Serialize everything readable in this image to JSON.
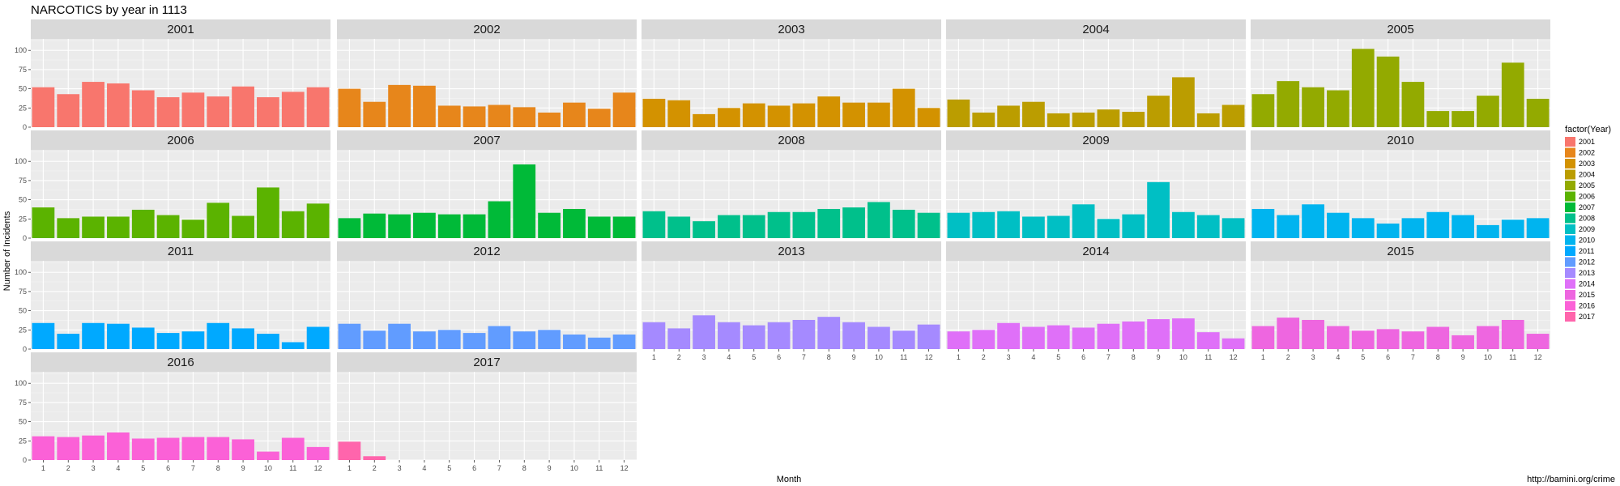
{
  "chart_data": {
    "type": "bar",
    "title": "NARCOTICS by year in 1113",
    "xlabel": "Month",
    "ylabel": "Number of Incidents",
    "caption": "http://bamini.org/crime",
    "legend_title": "factor(Year)",
    "legend_position": "right",
    "facet": "Year",
    "grid": true,
    "ylim": [
      0,
      115
    ],
    "y_ticks": [
      "0",
      "25",
      "50",
      "75",
      "100"
    ],
    "categories": [
      "1",
      "2",
      "3",
      "4",
      "5",
      "6",
      "7",
      "8",
      "9",
      "10",
      "11",
      "12"
    ],
    "series": [
      {
        "name": "2001",
        "color": "#F8766D",
        "values": [
          52,
          43,
          59,
          57,
          48,
          39,
          45,
          40,
          53,
          39,
          46,
          52
        ]
      },
      {
        "name": "2002",
        "color": "#E7861B",
        "values": [
          50,
          33,
          55,
          54,
          28,
          27,
          29,
          26,
          19,
          32,
          24,
          45
        ]
      },
      {
        "name": "2003",
        "color": "#D39200",
        "values": [
          37,
          35,
          17,
          25,
          31,
          28,
          31,
          40,
          32,
          32,
          50,
          25
        ]
      },
      {
        "name": "2004",
        "color": "#BB9D00",
        "values": [
          36,
          19,
          28,
          33,
          18,
          19,
          23,
          20,
          41,
          65,
          18,
          29
        ]
      },
      {
        "name": "2005",
        "color": "#93AA00",
        "values": [
          43,
          60,
          52,
          48,
          102,
          92,
          59,
          21,
          21,
          41,
          84,
          37
        ]
      },
      {
        "name": "2006",
        "color": "#5BB300",
        "values": [
          40,
          26,
          28,
          28,
          37,
          30,
          24,
          46,
          29,
          66,
          35,
          45
        ]
      },
      {
        "name": "2007",
        "color": "#00BA38",
        "values": [
          26,
          32,
          31,
          33,
          31,
          31,
          48,
          96,
          33,
          38,
          28,
          28
        ]
      },
      {
        "name": "2008",
        "color": "#00C08B",
        "values": [
          35,
          28,
          22,
          30,
          30,
          34,
          34,
          38,
          40,
          47,
          37,
          33
        ]
      },
      {
        "name": "2009",
        "color": "#00BFC4",
        "values": [
          33,
          34,
          35,
          28,
          29,
          44,
          25,
          31,
          73,
          34,
          30,
          26
        ]
      },
      {
        "name": "2010",
        "color": "#00B4EF",
        "values": [
          38,
          30,
          44,
          33,
          26,
          19,
          26,
          34,
          30,
          17,
          24,
          26
        ]
      },
      {
        "name": "2011",
        "color": "#00A9FF",
        "values": [
          34,
          20,
          34,
          33,
          28,
          21,
          23,
          34,
          27,
          20,
          9,
          29
        ]
      },
      {
        "name": "2012",
        "color": "#619CFF",
        "values": [
          33,
          24,
          33,
          23,
          25,
          21,
          30,
          23,
          25,
          19,
          15,
          19
        ]
      },
      {
        "name": "2013",
        "color": "#A58AFF",
        "values": [
          35,
          27,
          44,
          35,
          31,
          35,
          38,
          42,
          35,
          29,
          24,
          32
        ]
      },
      {
        "name": "2014",
        "color": "#DF70F8",
        "values": [
          23,
          25,
          34,
          29,
          31,
          28,
          33,
          36,
          39,
          40,
          22,
          14
        ]
      },
      {
        "name": "2015",
        "color": "#EE66E0",
        "values": [
          30,
          41,
          38,
          30,
          24,
          26,
          23,
          29,
          18,
          30,
          38,
          20
        ]
      },
      {
        "name": "2016",
        "color": "#FB61D7",
        "values": [
          31,
          30,
          32,
          36,
          28,
          29,
          30,
          30,
          27,
          11,
          29,
          17
        ]
      },
      {
        "name": "2017",
        "color": "#FF65AC",
        "values": [
          24,
          5,
          null,
          null,
          null,
          null,
          null,
          null,
          null,
          null,
          null,
          null
        ]
      }
    ]
  }
}
